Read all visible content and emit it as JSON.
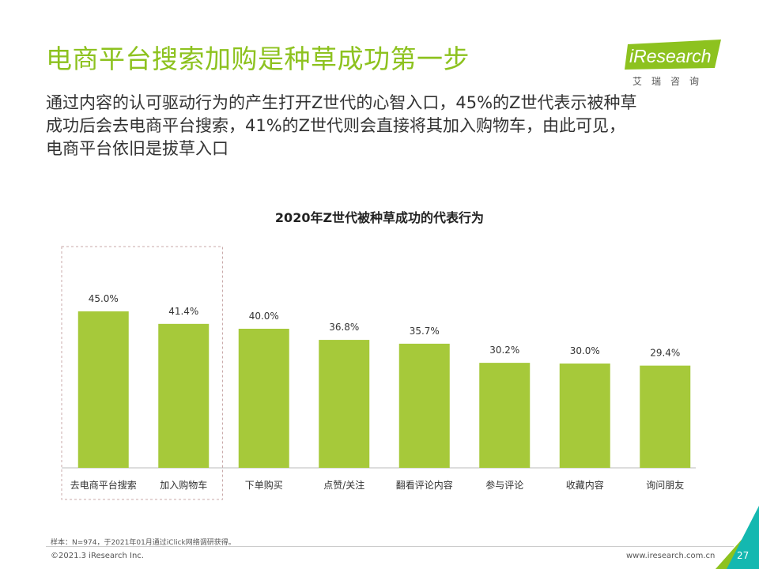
{
  "header": {
    "title": "电商平台搜索加购是种草成功第一步",
    "description_lines": [
      "通过内容的认可驱动行为的产生打开Z世代的心智入口，45%的Z世代表示被种草",
      "成功后会去电商平台搜索，41%的Z世代则会直接将其加入购物车，由此可见，",
      "电商平台依旧是拔草入口"
    ]
  },
  "logo": {
    "text": "iResearch",
    "subtext": "艾瑞咨询"
  },
  "chart_data": {
    "type": "bar",
    "title": "2020年Z世代被种草成功的代表行为",
    "categories": [
      "去电商平台搜索",
      "加入购物车",
      "下单购买",
      "点赞/关注",
      "翻看评论内容",
      "参与评论",
      "收藏内容",
      "询问朋友"
    ],
    "values": [
      45.0,
      41.4,
      40.0,
      36.8,
      35.7,
      30.2,
      30.0,
      29.4
    ],
    "value_labels": [
      "45.0%",
      "41.4%",
      "40.0%",
      "36.8%",
      "35.7%",
      "30.2%",
      "30.0%",
      "29.4%"
    ],
    "unit": "%",
    "ylim": [
      0,
      50
    ],
    "highlighted_categories": [
      "去电商平台搜索",
      "加入购物车"
    ],
    "grid": false,
    "bar_color": "#a6c93a"
  },
  "footer": {
    "source": "样本：N=974，于2021年01月通过iClick网络调研获得。",
    "copyright": "©2021.3 iResearch Inc.",
    "website": "www.iresearch.com.cn",
    "page_number": "27"
  },
  "colors": {
    "accent": "#8dc21f",
    "bar": "#a6c93a",
    "corner_teal": "#14b8b0",
    "corner_green": "#8dc21f"
  }
}
